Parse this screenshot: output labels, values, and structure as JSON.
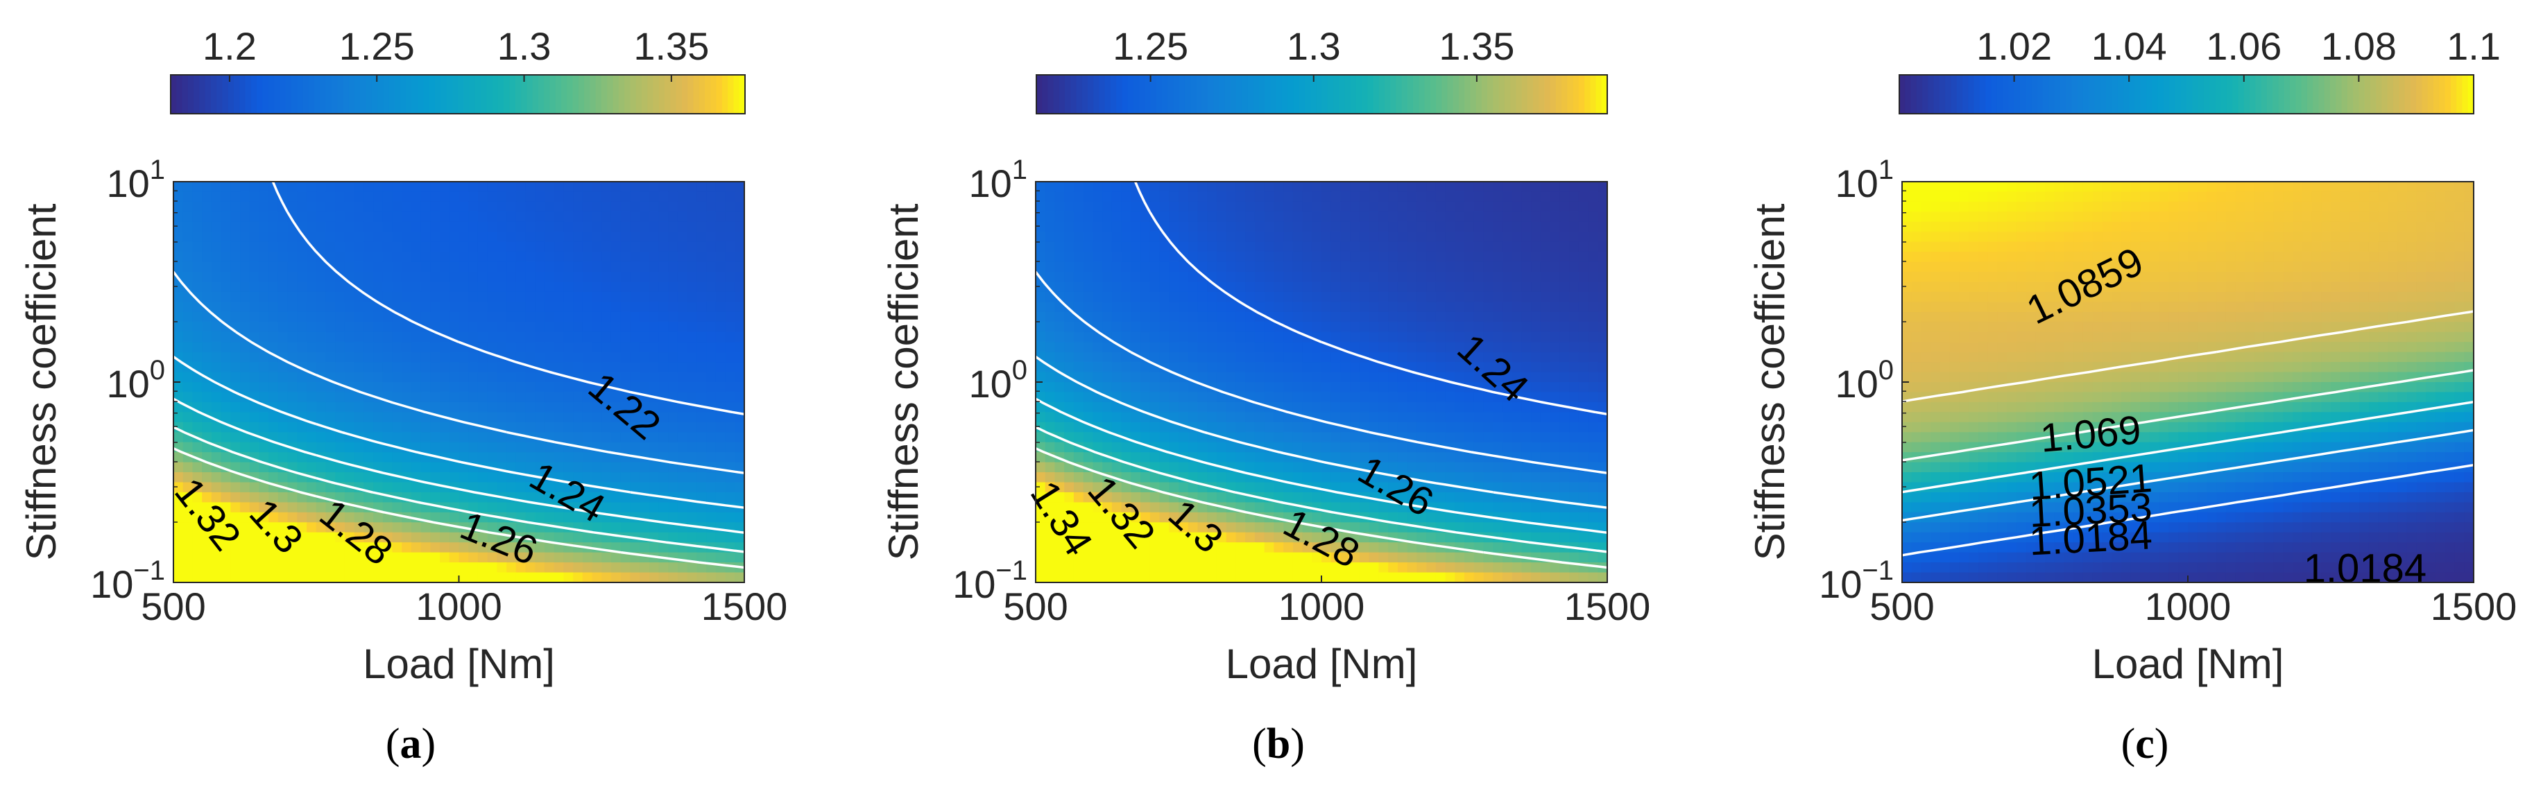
{
  "chart_data": [
    {
      "type": "heatmap",
      "panel": "a",
      "caption": {
        "open": "(",
        "letter": "a",
        "close": ")"
      },
      "xlabel": "Load [Nm]",
      "ylabel": "Stiffness coefficient",
      "xlim": [
        500,
        1500
      ],
      "ylim_log10": [
        -1,
        1
      ],
      "x_ticks": [
        {
          "value": 500,
          "label": "500"
        },
        {
          "value": 1000,
          "label": "1000"
        },
        {
          "value": 1500,
          "label": "1500"
        }
      ],
      "y_ticks": [
        {
          "exp": -1,
          "base": "10",
          "sup": "−1"
        },
        {
          "exp": 0,
          "base": "10",
          "sup": "0"
        },
        {
          "exp": 1,
          "base": "10",
          "sup": "1"
        }
      ],
      "colorbar": {
        "range": [
          1.18,
          1.375
        ],
        "ticks": [
          {
            "value": 1.2,
            "label": "1.2"
          },
          {
            "value": 1.25,
            "label": "1.25"
          },
          {
            "value": 1.3,
            "label": "1.3"
          },
          {
            "value": 1.35,
            "label": "1.35"
          }
        ]
      },
      "model": {
        "kind": "hyperbolic",
        "a": 1.185,
        "b": 3.3,
        "c": 0.065
      },
      "contour_labels": [
        {
          "text": "1.32",
          "level": 1.32,
          "x": 560,
          "logk": -0.66,
          "rotation": 52
        },
        {
          "text": "1.3",
          "level": 1.3,
          "x": 680,
          "logk": -0.72,
          "rotation": 48
        },
        {
          "text": "1.28",
          "level": 1.28,
          "x": 820,
          "logk": -0.75,
          "rotation": 38
        },
        {
          "text": "1.26",
          "level": 1.26,
          "x": 1070,
          "logk": -0.78,
          "rotation": 22
        },
        {
          "text": "1.24",
          "level": 1.24,
          "x": 1190,
          "logk": -0.55,
          "rotation": 30
        },
        {
          "text": "1.22",
          "level": 1.22,
          "x": 1290,
          "logk": -0.12,
          "rotation": 40
        }
      ]
    },
    {
      "type": "heatmap",
      "panel": "b",
      "caption": {
        "open": "(",
        "letter": "b",
        "close": ")"
      },
      "xlabel": "Load [Nm]",
      "ylabel": "Stiffness coefficient",
      "xlim": [
        500,
        1500
      ],
      "ylim_log10": [
        -1,
        1
      ],
      "x_ticks": [
        {
          "value": 500,
          "label": "500"
        },
        {
          "value": 1000,
          "label": "1000"
        },
        {
          "value": 1500,
          "label": "1500"
        }
      ],
      "y_ticks": [
        {
          "exp": -1,
          "base": "10",
          "sup": "−1"
        },
        {
          "exp": 0,
          "base": "10",
          "sup": "0"
        },
        {
          "exp": 1,
          "base": "10",
          "sup": "1"
        }
      ],
      "colorbar": {
        "range": [
          1.215,
          1.39
        ],
        "ticks": [
          {
            "value": 1.25,
            "label": "1.25"
          },
          {
            "value": 1.3,
            "label": "1.3"
          },
          {
            "value": 1.35,
            "label": "1.35"
          }
        ]
      },
      "model": {
        "kind": "hyperbolic",
        "a": 1.205,
        "b": 3.3,
        "c": 0.065
      },
      "contour_labels": [
        {
          "text": "1.34",
          "level": 1.34,
          "x": 545,
          "logk": -0.68,
          "rotation": 58
        },
        {
          "text": "1.32",
          "level": 1.32,
          "x": 650,
          "logk": -0.65,
          "rotation": 50
        },
        {
          "text": "1.3",
          "level": 1.3,
          "x": 780,
          "logk": -0.72,
          "rotation": 42
        },
        {
          "text": "1.28",
          "level": 1.28,
          "x": 1000,
          "logk": -0.78,
          "rotation": 28
        },
        {
          "text": "1.26",
          "level": 1.26,
          "x": 1130,
          "logk": -0.52,
          "rotation": 30
        },
        {
          "text": "1.24",
          "level": 1.24,
          "x": 1300,
          "logk": 0.07,
          "rotation": 42
        }
      ]
    },
    {
      "type": "heatmap",
      "panel": "c",
      "caption": {
        "open": "(",
        "letter": "c",
        "close": ")"
      },
      "xlabel": "Load [Nm]",
      "ylabel": "Stiffness coefficient",
      "xlim": [
        500,
        1500
      ],
      "ylim_log10": [
        -1,
        1
      ],
      "x_ticks": [
        {
          "value": 500,
          "label": "500"
        },
        {
          "value": 1000,
          "label": "1000"
        },
        {
          "value": 1500,
          "label": "1500"
        }
      ],
      "y_ticks": [
        {
          "exp": -1,
          "base": "10",
          "sup": "−1"
        },
        {
          "exp": 0,
          "base": "10",
          "sup": "0"
        },
        {
          "exp": 1,
          "base": "10",
          "sup": "1"
        }
      ],
      "colorbar": {
        "range": [
          1.0,
          1.1
        ],
        "ticks": [
          {
            "value": 1.02,
            "label": "1.02"
          },
          {
            "value": 1.04,
            "label": "1.04"
          },
          {
            "value": 1.06,
            "label": "1.06"
          },
          {
            "value": 1.08,
            "label": "1.08"
          },
          {
            "value": 1.1,
            "label": "1.1"
          }
        ]
      },
      "model": {
        "kind": "sigmoid",
        "base": 1.0,
        "amp": 1.092,
        "center": -0.6,
        "width": 0.19,
        "shift": 0.45,
        "corner": 0.01
      },
      "contour_labels": [
        {
          "text": "1.0859",
          "level": 1.0859,
          "x": 820,
          "logk": 0.48,
          "rotation": -26
        },
        {
          "text": "1.069",
          "level": 1.069,
          "x": 830,
          "logk": -0.26,
          "rotation": -5
        },
        {
          "text": "1.0521",
          "level": 1.0521,
          "x": 830,
          "logk": -0.5,
          "rotation": -4
        },
        {
          "text": "1.0353",
          "level": 1.0353,
          "x": 830,
          "logk": -0.64,
          "rotation": -3
        },
        {
          "text": "1.0184",
          "level": 1.0184,
          "x": 830,
          "logk": -0.78,
          "rotation": -3
        },
        {
          "text": "1.0184",
          "level": 1.0184,
          "x": 1310,
          "logk": -0.93,
          "rotation": 0
        }
      ]
    }
  ]
}
